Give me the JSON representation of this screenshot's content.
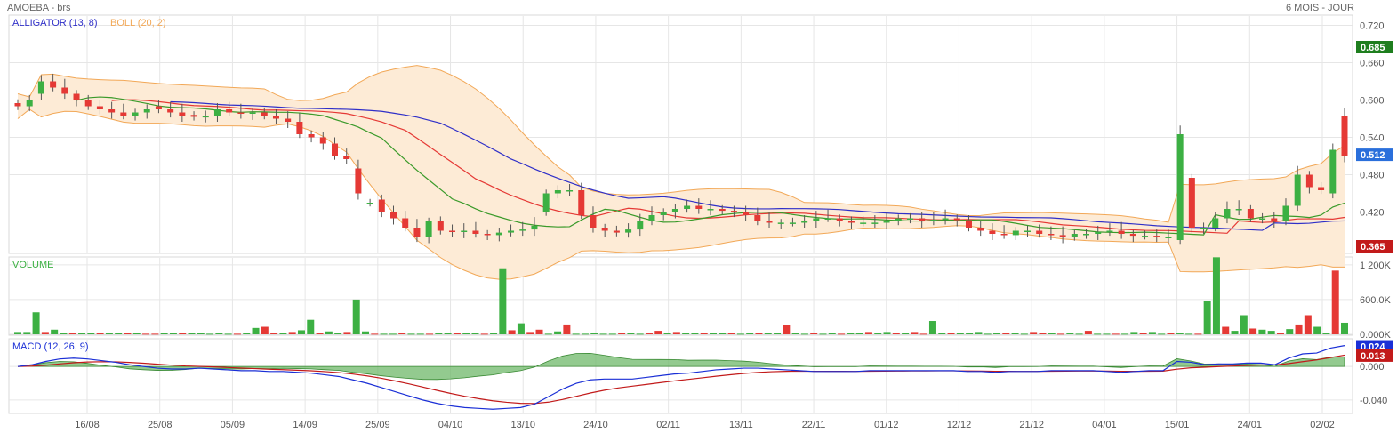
{
  "header": {
    "ticker": "AMOEBA - brs",
    "period": "6 MOIS - JOUR"
  },
  "colors": {
    "up": "#3cb043",
    "down": "#e53935",
    "boll_fill": "#fdebd6",
    "boll_line": "#f2a857",
    "alligator_jaw": "#2f2fc8",
    "alligator_teeth": "#e53935",
    "alligator_lips": "#3a9a2a"
  },
  "chart_data": [
    {
      "type": "candlestick",
      "legend": [
        "ALLIGATOR (13, 8)",
        "BOLL (20, 2)"
      ],
      "y_ticks": [
        "0.720",
        "0.660",
        "0.600",
        "0.540",
        "0.480",
        "0.420"
      ],
      "ylim": [
        0.355,
        0.735
      ],
      "x_ticks": [
        "16/08",
        "25/08",
        "05/09",
        "14/09",
        "25/09",
        "04/10",
        "13/10",
        "24/10",
        "02/11",
        "13/11",
        "22/11",
        "01/12",
        "12/12",
        "21/12",
        "04/01",
        "15/01",
        "24/01",
        "02/02"
      ],
      "markers": [
        {
          "label": "0.685",
          "value": 0.685,
          "color": "#1e7e1e"
        },
        {
          "label": "0.512",
          "value": 0.512,
          "color": "#2a6fdb"
        },
        {
          "label": "0.365",
          "value": 0.365,
          "color": "#c21a1a"
        }
      ],
      "close": [
        0.59,
        0.6,
        0.63,
        0.62,
        0.61,
        0.6,
        0.59,
        0.585,
        0.58,
        0.575,
        0.58,
        0.585,
        0.585,
        0.58,
        0.575,
        0.573,
        0.575,
        0.585,
        0.58,
        0.578,
        0.58,
        0.575,
        0.57,
        0.565,
        0.545,
        0.54,
        0.53,
        0.51,
        0.505,
        0.45,
        0.435,
        0.42,
        0.41,
        0.395,
        0.38,
        0.405,
        0.39,
        0.388,
        0.39,
        0.385,
        0.383,
        0.387,
        0.39,
        0.392,
        0.398,
        0.45,
        0.455,
        0.455,
        0.415,
        0.395,
        0.39,
        0.387,
        0.392,
        0.405,
        0.415,
        0.42,
        0.425,
        0.43,
        0.425,
        0.425,
        0.422,
        0.42,
        0.415,
        0.405,
        0.403,
        0.403,
        0.403,
        0.405,
        0.41,
        0.41,
        0.405,
        0.403,
        0.403,
        0.403,
        0.405,
        0.41,
        0.41,
        0.405,
        0.408,
        0.41,
        0.407,
        0.395,
        0.39,
        0.385,
        0.383,
        0.39,
        0.39,
        0.385,
        0.383,
        0.38,
        0.385,
        0.385,
        0.388,
        0.39,
        0.385,
        0.382,
        0.382,
        0.38,
        0.38,
        0.545,
        0.395,
        0.395,
        0.41,
        0.425,
        0.425,
        0.41,
        0.41,
        0.405,
        0.43,
        0.48,
        0.46,
        0.455,
        0.52,
        0.51
      ],
      "open_offset": [
        0.005,
        -0.01,
        -0.02,
        0.01,
        0.01,
        0.01,
        0.01,
        0.005,
        0.005,
        0.005,
        -0.005,
        -0.005,
        0.005,
        0.005,
        0.005,
        0.003,
        -0.003,
        -0.01,
        0.005,
        0.002,
        -0.002,
        0.005,
        0.005,
        0.005,
        0.02,
        0.005,
        0.01,
        0.02,
        0.005,
        0.04,
        0.0,
        0.02,
        0.01,
        0.015,
        0.015,
        -0.025,
        0.015,
        0.002,
        -0.002,
        0.005,
        0.002,
        -0.004,
        -0.003,
        -0.002,
        -0.006,
        -0.03,
        -0.005,
        0.0,
        0.04,
        0.02,
        0.005,
        0.003,
        -0.005,
        -0.013,
        -0.01,
        -0.005,
        -0.005,
        -0.005,
        0.005,
        0.0,
        0.003,
        0.002,
        0.005,
        0.01,
        0.002,
        0.0,
        0.0,
        -0.002,
        -0.005,
        0.0,
        0.005,
        0.002,
        0.0,
        0.0,
        -0.002,
        -0.005,
        0.0,
        0.005,
        -0.003,
        -0.002,
        0.003,
        0.012,
        0.005,
        0.005,
        0.002,
        -0.007,
        0.0,
        0.005,
        0.002,
        0.003,
        -0.005,
        0.0,
        -0.003,
        -0.002,
        0.005,
        0.003,
        0.0,
        0.002,
        0.0,
        -0.17,
        0.08,
        0.0,
        -0.015,
        -0.015,
        0.0,
        0.015,
        0.0,
        0.005,
        -0.025,
        -0.05,
        0.02,
        0.005,
        -0.07,
        0.065
      ]
    },
    {
      "type": "bar",
      "name": "VOLUME",
      "y_ticks": [
        "1 200K",
        "600.0K",
        "0.000K"
      ],
      "ylim": [
        0,
        1320000
      ],
      "values": [
        40000,
        40000,
        380000,
        40000,
        80000,
        20000,
        30000,
        30000,
        30000,
        20000,
        30000,
        20000,
        20000,
        20000,
        10000,
        10000,
        20000,
        20000,
        20000,
        30000,
        20000,
        10000,
        30000,
        10000,
        10000,
        20000,
        110000,
        130000,
        20000,
        20000,
        40000,
        70000,
        250000,
        20000,
        50000,
        20000,
        40000,
        600000,
        50000,
        10000,
        10000,
        10000,
        20000,
        10000,
        10000,
        10000,
        20000,
        20000,
        30000,
        20000,
        30000,
        10000,
        20000,
        1140000,
        70000,
        190000,
        40000,
        80000,
        10000,
        50000,
        170000,
        10000,
        10000,
        20000,
        10000,
        10000,
        20000,
        20000,
        10000,
        30000,
        60000,
        20000,
        40000,
        20000,
        20000,
        30000,
        30000,
        20000,
        20000,
        10000,
        30000,
        30000,
        20000,
        20000,
        160000,
        20000,
        10000,
        20000,
        10000,
        20000,
        10000,
        20000,
        30000,
        40000,
        20000,
        40000,
        20000,
        20000,
        40000,
        10000,
        230000,
        20000,
        30000,
        20000,
        20000,
        40000,
        10000,
        20000,
        30000,
        20000,
        10000,
        40000,
        20000,
        20000,
        10000,
        20000,
        10000,
        60000,
        10000,
        10000,
        10000,
        10000,
        40000,
        20000,
        40000,
        10000,
        20000,
        20000,
        10000,
        10000,
        580000,
        1330000,
        130000,
        60000,
        330000,
        100000,
        80000,
        60000,
        30000,
        90000,
        170000,
        330000,
        130000,
        30000,
        1100000,
        200000
      ]
    },
    {
      "type": "line",
      "name": "MACD (12, 26, 9)",
      "y_ticks": [
        "0.000",
        "-0.040"
      ],
      "ylim": [
        -0.055,
        0.032
      ],
      "markers": [
        {
          "label": "0.024",
          "value": 0.024,
          "color": "#1a2fd6"
        },
        {
          "label": "0.013",
          "value": 0.013,
          "color": "#c21a1a"
        }
      ],
      "macd": [
        0.0,
        0.002,
        0.006,
        0.009,
        0.01,
        0.009,
        0.007,
        0.005,
        0.002,
        0.0,
        -0.002,
        -0.003,
        -0.003,
        -0.002,
        -0.003,
        -0.004,
        -0.005,
        -0.005,
        -0.006,
        -0.006,
        -0.007,
        -0.008,
        -0.01,
        -0.012,
        -0.016,
        -0.02,
        -0.025,
        -0.03,
        -0.035,
        -0.04,
        -0.044,
        -0.047,
        -0.049,
        -0.05,
        -0.051,
        -0.05,
        -0.049,
        -0.045,
        -0.036,
        -0.027,
        -0.02,
        -0.016,
        -0.015,
        -0.015,
        -0.015,
        -0.013,
        -0.011,
        -0.009,
        -0.008,
        -0.006,
        -0.004,
        -0.003,
        -0.002,
        -0.002,
        -0.003,
        -0.004,
        -0.005,
        -0.006,
        -0.006,
        -0.006,
        -0.006,
        -0.005,
        -0.005,
        -0.005,
        -0.005,
        -0.005,
        -0.005,
        -0.005,
        -0.006,
        -0.006,
        -0.007,
        -0.006,
        -0.006,
        -0.006,
        -0.005,
        -0.005,
        -0.005,
        -0.005,
        -0.006,
        -0.007,
        -0.006,
        -0.005,
        -0.005,
        0.006,
        0.005,
        0.002,
        0.003,
        0.003,
        0.004,
        0.004,
        0.002,
        0.01,
        0.015,
        0.016,
        0.022,
        0.025
      ]
    }
  ]
}
